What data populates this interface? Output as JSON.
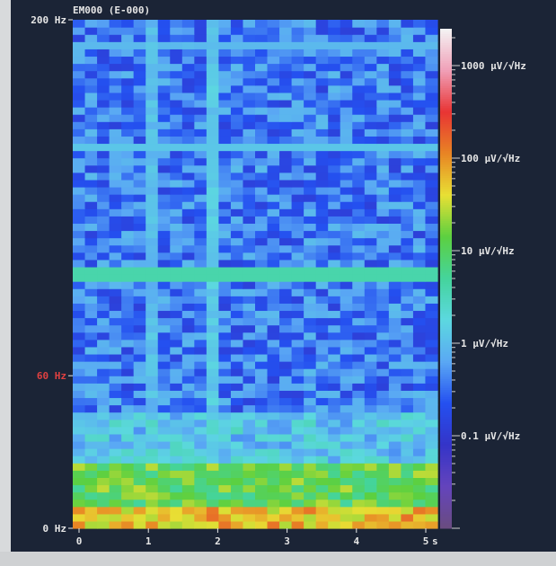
{
  "chart_data": {
    "type": "heatmap",
    "title": "EM000 (E-000)",
    "xlabel": "",
    "ylabel": "",
    "x_unit": "s",
    "xlim": [
      0,
      5
    ],
    "ylim": [
      0,
      200
    ],
    "x_ticks": [
      "0",
      "1",
      "2",
      "3",
      "4",
      "5"
    ],
    "y_ticks": [
      {
        "value": 0,
        "label": "0 Hz",
        "color": "#e6e6e6"
      },
      {
        "value": 60,
        "label": "60 Hz",
        "color": "#e04040"
      },
      {
        "value": 200,
        "label": "200 Hz",
        "color": "#e6e6e6"
      }
    ],
    "colorbar": {
      "scale": "log",
      "range": [
        0.01,
        2500
      ],
      "ticks": [
        {
          "value": 1000,
          "label": "1000 µV/√Hz"
        },
        {
          "value": 100,
          "label": "100 µV/√Hz"
        },
        {
          "value": 10,
          "label": "10 µV/√Hz"
        },
        {
          "value": 1,
          "label": "1 µV/√Hz"
        },
        {
          "value": 0.1,
          "label": "0.1 µV/√Hz"
        }
      ],
      "colormap": [
        "#f4f4f4",
        "#f0a0b8",
        "#e83434",
        "#e88424",
        "#e8e034",
        "#5cd040",
        "#44d49c",
        "#5cd8e0",
        "#5aa8f4",
        "#2450f0",
        "#3434c8",
        "#6444bc",
        "#6a4c80"
      ]
    },
    "features": {
      "background_level_uV": 0.35,
      "frequency_bands": [
        {
          "from_hz": 0,
          "to_hz": 8,
          "level_uV": 60
        },
        {
          "from_hz": 8,
          "to_hz": 25,
          "level_uV": 12
        },
        {
          "from_hz": 25,
          "to_hz": 45,
          "level_uV": 1.2
        }
      ],
      "line_noise_hz": [
        {
          "freq_hz": 150,
          "level_uV": 1.2
        },
        {
          "freq_hz": 100,
          "level_uV": 4
        },
        {
          "freq_hz": 190,
          "level_uV": 0.9
        }
      ],
      "time_artifacts_s": [
        {
          "time_s": 1.0,
          "level_uV": 1.0
        },
        {
          "time_s": 2.0,
          "level_uV": 1.3
        }
      ]
    }
  }
}
